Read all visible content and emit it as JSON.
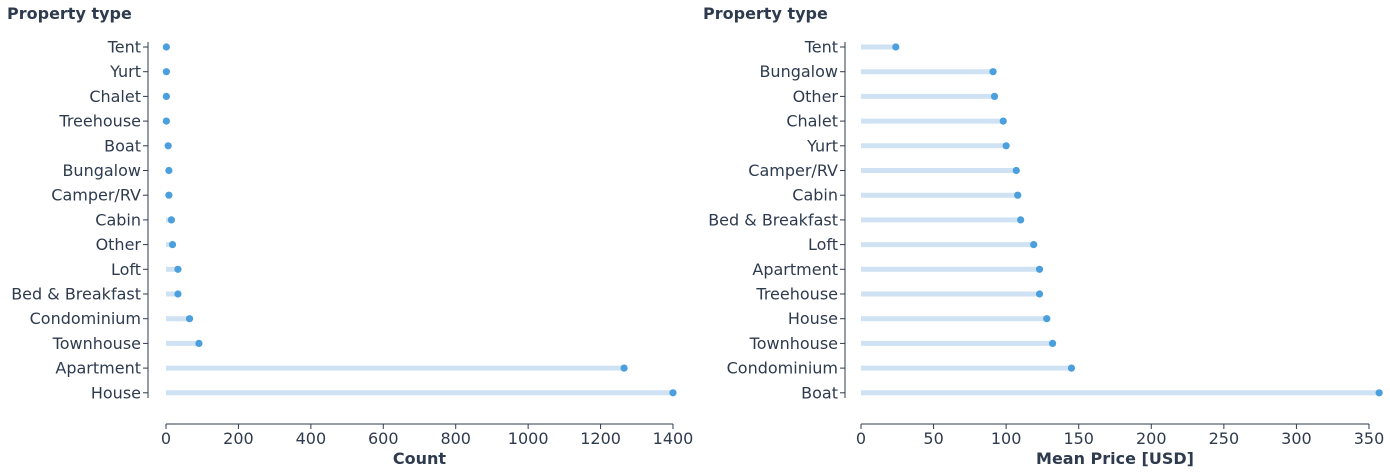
{
  "colors": {
    "stem": "#cfe2f3",
    "dot": "#4a9fdc",
    "text": "#2e3b4e"
  },
  "chart_data": [
    {
      "type": "lollipop",
      "orientation": "horizontal",
      "ylabel": "Property type",
      "xlabel": "Count",
      "xlim": [
        -10,
        1410
      ],
      "xticks": [
        0,
        200,
        400,
        600,
        800,
        1000,
        1200,
        1400
      ],
      "grid": false,
      "categories": [
        "Tent",
        "Yurt",
        "Chalet",
        "Treehouse",
        "Boat",
        "Bungalow",
        "Camper/RV",
        "Cabin",
        "Other",
        "Loft",
        "Bed & Breakfast",
        "Condominium",
        "Townhouse",
        "Apartment",
        "House"
      ],
      "values": [
        1,
        1,
        1,
        1,
        6,
        8,
        8,
        15,
        18,
        33,
        33,
        65,
        91,
        1265,
        1400
      ]
    },
    {
      "type": "lollipop",
      "orientation": "horizontal",
      "ylabel": "Property type",
      "xlabel": "Mean Price [USD]",
      "xlim": [
        0,
        357
      ],
      "xticks": [
        0,
        50,
        100,
        150,
        200,
        250,
        300,
        350
      ],
      "grid": false,
      "categories": [
        "Tent",
        "Bungalow",
        "Other",
        "Chalet",
        "Yurt",
        "Camper/RV",
        "Cabin",
        "Bed & Breakfast",
        "Loft",
        "Apartment",
        "Treehouse",
        "House",
        "Townhouse",
        "Condominium",
        "Boat"
      ],
      "values": [
        24,
        91,
        92,
        98,
        100,
        107,
        108,
        110,
        119,
        123,
        123,
        128,
        132,
        145,
        357
      ]
    }
  ]
}
